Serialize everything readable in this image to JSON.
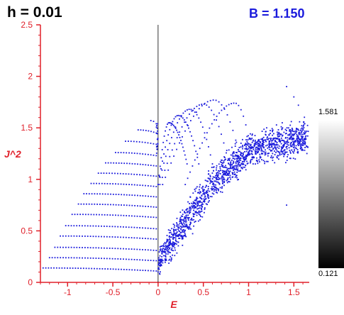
{
  "header": {
    "h_label": "h = 0.01",
    "b_label": "B = 1.150"
  },
  "colors": {
    "accent_axis": "#e0202a",
    "points": "#1a1adc",
    "b_label": "#1a1adc"
  },
  "colorbar": {
    "max_label": "1.581",
    "min_label": "0.121",
    "gradient": "white-to-black"
  },
  "chart_data": {
    "type": "scatter",
    "title": "h = 0.01",
    "subtitle": "B = 1.150",
    "xlabel": "E",
    "ylabel": "J^2",
    "xlim": [
      -1.3,
      1.67
    ],
    "ylim": [
      0,
      2.5
    ],
    "xticks": [
      -1,
      -0.5,
      0,
      0.5,
      1,
      1.5
    ],
    "xtick_labels": [
      "-1",
      "-0.5",
      "0",
      "0.5",
      "1",
      "1.5"
    ],
    "yticks": [
      0,
      0.5,
      1,
      1.5,
      2,
      2.5
    ],
    "ytick_labels": [
      "0",
      "0.5",
      "1",
      "1.5",
      "2",
      "2.5"
    ],
    "vertical_line_at_x": 0,
    "grid": false,
    "series": [
      {
        "description": "regular orbit levels (J^2 vs E), left region",
        "levels": [
          {
            "j2": 0.14,
            "e_start": -1.27,
            "e_end": -0.02
          },
          {
            "j2": 0.24,
            "e_start": -1.2,
            "e_end": -0.02
          },
          {
            "j2": 0.34,
            "e_start": -1.14,
            "e_end": -0.02
          },
          {
            "j2": 0.45,
            "e_start": -1.08,
            "e_end": -0.02
          },
          {
            "j2": 0.55,
            "e_start": -1.02,
            "e_end": -0.02
          },
          {
            "j2": 0.66,
            "e_start": -0.95,
            "e_end": -0.02
          },
          {
            "j2": 0.76,
            "e_start": -0.88,
            "e_end": -0.02
          },
          {
            "j2": 0.86,
            "e_start": -0.82,
            "e_end": -0.02
          },
          {
            "j2": 0.96,
            "e_start": -0.74,
            "e_end": -0.02
          },
          {
            "j2": 1.06,
            "e_start": -0.66,
            "e_end": -0.02
          },
          {
            "j2": 1.16,
            "e_start": -0.58,
            "e_end": -0.02
          },
          {
            "j2": 1.26,
            "e_start": -0.47,
            "e_end": -0.02
          },
          {
            "j2": 1.37,
            "e_start": -0.36,
            "e_end": -0.02
          },
          {
            "j2": 1.48,
            "e_start": -0.22,
            "e_end": -0.02
          },
          {
            "j2": 1.57,
            "e_start": -0.08,
            "e_end": -0.02
          }
        ]
      },
      {
        "description": "regular orbit arcs, right of E=0",
        "arcs": [
          {
            "peak_j2": 1.55,
            "e_start": 0.0,
            "e_peak": 0.12,
            "e_end": 0.32
          },
          {
            "peak_j2": 1.62,
            "e_start": 0.0,
            "e_peak": 0.22,
            "e_end": 0.45
          },
          {
            "peak_j2": 1.68,
            "e_start": 0.0,
            "e_peak": 0.35,
            "e_end": 0.6
          },
          {
            "peak_j2": 1.73,
            "e_start": 0.02,
            "e_peak": 0.5,
            "e_end": 0.78
          },
          {
            "peak_j2": 1.77,
            "e_start": 0.05,
            "e_peak": 0.62,
            "e_end": 0.92
          },
          {
            "peak_j2": 1.74,
            "e_start": 0.3,
            "e_peak": 0.85,
            "e_end": 1.05
          }
        ]
      },
      {
        "description": "chaotic sea band",
        "band": [
          {
            "e": 0.0,
            "j2_center": 0.2,
            "spread": 0.12
          },
          {
            "e": 0.2,
            "j2_center": 0.45,
            "spread": 0.15
          },
          {
            "e": 0.4,
            "j2_center": 0.7,
            "spread": 0.16
          },
          {
            "e": 0.6,
            "j2_center": 0.95,
            "spread": 0.15
          },
          {
            "e": 0.8,
            "j2_center": 1.12,
            "spread": 0.14
          },
          {
            "e": 1.0,
            "j2_center": 1.27,
            "spread": 0.13
          },
          {
            "e": 1.2,
            "j2_center": 1.33,
            "spread": 0.14
          },
          {
            "e": 1.4,
            "j2_center": 1.37,
            "spread": 0.15
          },
          {
            "e": 1.65,
            "j2_center": 1.4,
            "spread": 0.16
          }
        ]
      }
    ]
  }
}
